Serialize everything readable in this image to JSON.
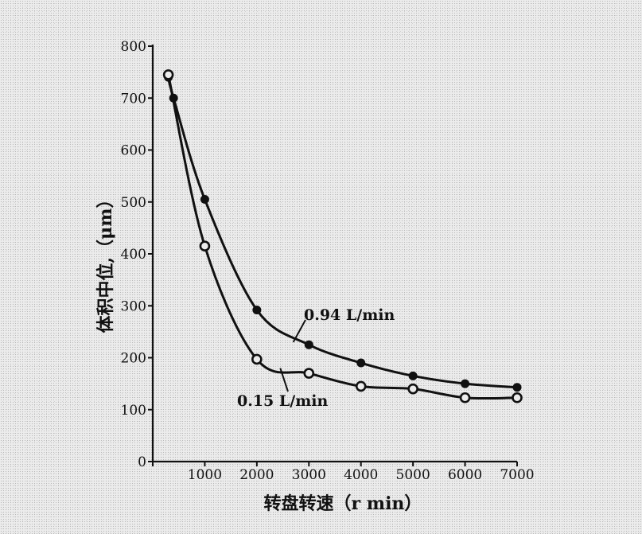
{
  "chart_data": {
    "type": "line",
    "title": "",
    "xlabel": "转盘转速（r min）",
    "ylabel": "体积中位,（μm）",
    "xlim": [
      0,
      7000
    ],
    "ylim": [
      0,
      800
    ],
    "x_ticks": [
      "0",
      "1000",
      "2000",
      "3000",
      "4000",
      "5000",
      "6000",
      "7000"
    ],
    "y_ticks": [
      "0",
      "100",
      "200",
      "300",
      "400",
      "500",
      "600",
      "700",
      "800"
    ],
    "grid": false,
    "series": [
      {
        "name": "0.94 L/min",
        "marker": "filled-circle",
        "points": [
          {
            "x": 300,
            "y": 740
          },
          {
            "x": 400,
            "y": 700
          },
          {
            "x": 1000,
            "y": 505
          },
          {
            "x": 2000,
            "y": 292
          },
          {
            "x": 3000,
            "y": 225
          },
          {
            "x": 4000,
            "y": 190
          },
          {
            "x": 5000,
            "y": 165
          },
          {
            "x": 6000,
            "y": 150
          },
          {
            "x": 7000,
            "y": 143
          }
        ]
      },
      {
        "name": "0.15 L/min",
        "marker": "open-circle",
        "points": [
          {
            "x": 300,
            "y": 745
          },
          {
            "x": 1000,
            "y": 415
          },
          {
            "x": 2000,
            "y": 197
          },
          {
            "x": 3000,
            "y": 170
          },
          {
            "x": 4000,
            "y": 145
          },
          {
            "x": 5000,
            "y": 140
          },
          {
            "x": 6000,
            "y": 123
          },
          {
            "x": 7000,
            "y": 123
          }
        ]
      }
    ],
    "annotations": [
      {
        "text": "0.94 L/min",
        "series": 0
      },
      {
        "text": "0.15 L/min",
        "series": 1
      }
    ]
  }
}
